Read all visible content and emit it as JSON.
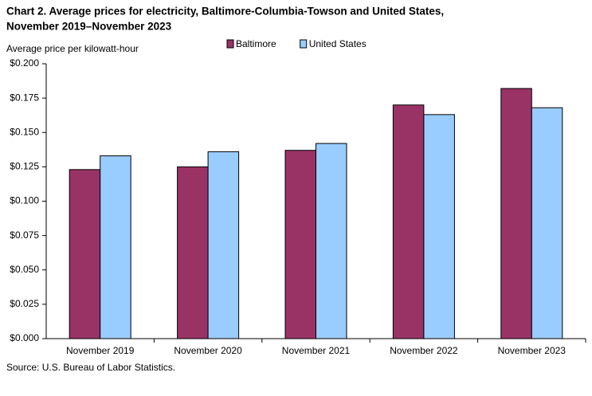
{
  "chart_data": {
    "type": "bar",
    "title": [
      "Chart 2. Average prices for electricity, Baltimore-Columbia-Towson and United States,",
      "November 2019–November 2023"
    ],
    "y_label": "Average price per kilowatt-hour",
    "source": "Source: U.S. Bureau of Labor Statistics.",
    "categories": [
      "November 2019",
      "November 2020",
      "November 2021",
      "November 2022",
      "November 2023"
    ],
    "series": [
      {
        "name": "Baltimore",
        "color": "#993366",
        "values": [
          0.123,
          0.125,
          0.137,
          0.17,
          0.182
        ]
      },
      {
        "name": "United States",
        "color": "#99ccff",
        "values": [
          0.133,
          0.136,
          0.142,
          0.163,
          0.168
        ]
      }
    ],
    "ylim": [
      0,
      0.2
    ],
    "yticks": [
      {
        "value": 0,
        "label": "$0.000"
      },
      {
        "value": 0.025,
        "label": "$0.025"
      },
      {
        "value": 0.05,
        "label": "$0.050"
      },
      {
        "value": 0.075,
        "label": "$0.075"
      },
      {
        "value": 0.1,
        "label": "$0.100"
      },
      {
        "value": 0.125,
        "label": "$0.125"
      },
      {
        "value": 0.15,
        "label": "$0.150"
      },
      {
        "value": 0.175,
        "label": "$0.175"
      },
      {
        "value": 0.2,
        "label": "$0.200"
      }
    ],
    "grid": false,
    "legend": "top"
  }
}
